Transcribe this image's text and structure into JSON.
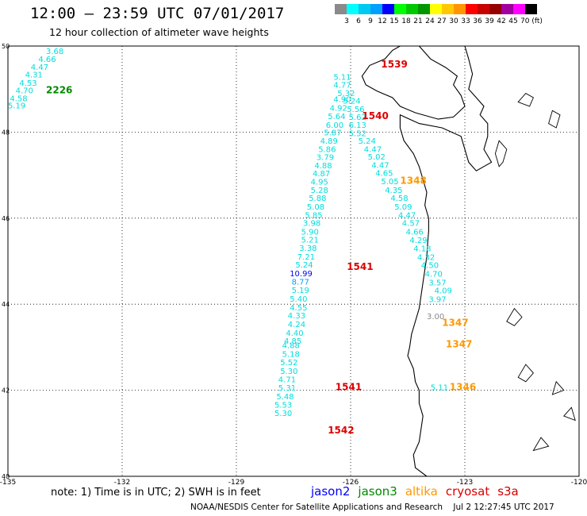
{
  "title": "12:00 — 23:59 UTC 07/01/2017",
  "subtitle": "12 hour collection of altimeter wave heights",
  "color_scale": {
    "labels": [
      "3",
      "6",
      "9",
      "12",
      "15",
      "18",
      "21",
      "24",
      "27",
      "30",
      "33",
      "36",
      "39",
      "42",
      "45",
      "70 (ft)"
    ],
    "colors": [
      "#8a8a8a",
      "#00ffff",
      "#00c8f0",
      "#00a0ff",
      "#0000ff",
      "#00ff00",
      "#00c800",
      "#009600",
      "#ffff00",
      "#ffc800",
      "#ff9600",
      "#ff0000",
      "#c80000",
      "#960000",
      "#a000a0",
      "#ff00ff",
      "#000000"
    ]
  },
  "axes": {
    "lon_ticks": [
      "-135",
      "-132",
      "-129",
      "-126",
      "-123",
      "-120"
    ],
    "lat_ticks": [
      "50",
      "48",
      "46",
      "44",
      "42",
      "40"
    ]
  },
  "satellites": [
    {
      "name": "jason2",
      "color": "#0000ff"
    },
    {
      "name": "jason3",
      "color": "#008800"
    },
    {
      "name": "altika",
      "color": "#ff9900"
    },
    {
      "name": "cryosat",
      "color": "#dd0000"
    },
    {
      "name": "s3a",
      "color": "#cc0000"
    }
  ],
  "pass_labels": [
    {
      "text": "2226",
      "color": "#008800",
      "lon": -134.0,
      "lat": 48.9
    },
    {
      "text": "1539",
      "color": "#dd0000",
      "lon": -125.2,
      "lat": 49.5
    },
    {
      "text": "1540",
      "color": "#dd0000",
      "lon": -125.7,
      "lat": 48.3
    },
    {
      "text": "1348",
      "color": "#ff9900",
      "lon": -124.7,
      "lat": 46.8
    },
    {
      "text": "1541",
      "color": "#dd0000",
      "lon": -126.1,
      "lat": 44.8
    },
    {
      "text": "1347",
      "color": "#ff9900",
      "lon": -123.6,
      "lat": 43.5
    },
    {
      "text": "1347",
      "color": "#ff9900",
      "lon": -123.5,
      "lat": 43.0
    },
    {
      "text": "1541",
      "color": "#dd0000",
      "lon": -126.4,
      "lat": 42.0
    },
    {
      "text": "1346",
      "color": "#ff9900",
      "lon": -123.4,
      "lat": 42.0
    },
    {
      "text": "1542",
      "color": "#dd0000",
      "lon": -126.6,
      "lat": 41.0
    }
  ],
  "readings": [
    {
      "text": "3.68",
      "lon": -134.0,
      "lat": 49.82,
      "color": "#00dddd"
    },
    {
      "text": "4.66",
      "lon": -134.2,
      "lat": 49.63,
      "color": "#00dddd"
    },
    {
      "text": "4.47",
      "lon": -134.4,
      "lat": 49.45,
      "color": "#00dddd"
    },
    {
      "text": "4.31",
      "lon": -134.55,
      "lat": 49.27,
      "color": "#00dddd"
    },
    {
      "text": "4.53",
      "lon": -134.7,
      "lat": 49.08,
      "color": "#00dddd"
    },
    {
      "text": "4.70",
      "lon": -134.8,
      "lat": 48.9,
      "color": "#00dddd"
    },
    {
      "text": "4.58",
      "lon": -134.95,
      "lat": 48.72,
      "color": "#00dddd"
    },
    {
      "text": "5.19",
      "lon": -135.0,
      "lat": 48.55,
      "color": "#00dddd"
    },
    {
      "text": "5.11",
      "lon": -126.45,
      "lat": 49.22,
      "color": "#00dddd"
    },
    {
      "text": "4.77",
      "lon": -126.45,
      "lat": 49.03,
      "color": "#00dddd"
    },
    {
      "text": "5.32",
      "lon": -126.35,
      "lat": 48.84,
      "color": "#00dddd"
    },
    {
      "text": "5.24",
      "lon": -126.2,
      "lat": 48.66,
      "color": "#00dddd"
    },
    {
      "text": "5.56",
      "lon": -126.1,
      "lat": 48.47,
      "color": "#00dddd"
    },
    {
      "text": "5.62",
      "lon": -126.05,
      "lat": 48.28,
      "color": "#00dddd"
    },
    {
      "text": "6.13",
      "lon": -126.05,
      "lat": 48.1,
      "color": "#00dddd"
    },
    {
      "text": "5.52",
      "lon": -126.05,
      "lat": 47.91,
      "color": "#00dddd"
    },
    {
      "text": "5.24",
      "lon": -125.8,
      "lat": 47.73,
      "color": "#00dddd"
    },
    {
      "text": "4.47",
      "lon": -125.65,
      "lat": 47.54,
      "color": "#00dddd"
    },
    {
      "text": "5.02",
      "lon": -125.55,
      "lat": 47.36,
      "color": "#00dddd"
    },
    {
      "text": "4.47",
      "lon": -125.45,
      "lat": 47.17,
      "color": "#00dddd"
    },
    {
      "text": "4.65",
      "lon": -125.35,
      "lat": 46.98,
      "color": "#00dddd"
    },
    {
      "text": "5.05",
      "lon": -125.2,
      "lat": 46.79,
      "color": "#00dddd"
    },
    {
      "text": "4.35",
      "lon": -125.1,
      "lat": 46.59,
      "color": "#00dddd"
    },
    {
      "text": "4.58",
      "lon": -124.95,
      "lat": 46.4,
      "color": "#00dddd"
    },
    {
      "text": "5.09",
      "lon": -124.85,
      "lat": 46.2,
      "color": "#00dddd"
    },
    {
      "text": "4.47",
      "lon": -124.75,
      "lat": 46.01,
      "color": "#00dddd"
    },
    {
      "text": "4.57",
      "lon": -124.65,
      "lat": 45.82,
      "color": "#00dddd"
    },
    {
      "text": "4.66",
      "lon": -124.55,
      "lat": 45.62,
      "color": "#00dddd"
    },
    {
      "text": "4.29",
      "lon": -124.45,
      "lat": 45.42,
      "color": "#00dddd"
    },
    {
      "text": "4.18",
      "lon": -124.35,
      "lat": 45.23,
      "color": "#00dddd"
    },
    {
      "text": "4.32",
      "lon": -124.25,
      "lat": 45.03,
      "color": "#00dddd"
    },
    {
      "text": "4.50",
      "lon": -124.15,
      "lat": 44.84,
      "color": "#00dddd"
    },
    {
      "text": "4.70",
      "lon": -124.05,
      "lat": 44.64,
      "color": "#00dddd"
    },
    {
      "text": "3.57",
      "lon": -123.95,
      "lat": 44.44,
      "color": "#00dddd"
    },
    {
      "text": "4.09",
      "lon": -123.8,
      "lat": 44.25,
      "color": "#00dddd"
    },
    {
      "text": "3.97",
      "lon": -123.95,
      "lat": 44.05,
      "color": "#00dddd"
    },
    {
      "text": "3.00",
      "lon": -124.0,
      "lat": 43.65,
      "color": "#888888"
    },
    {
      "text": "5.11",
      "lon": -123.9,
      "lat": 42.0,
      "color": "#00dddd"
    },
    {
      "text": "4.90",
      "lon": -126.45,
      "lat": 48.7,
      "color": "#00dddd"
    },
    {
      "text": "4.92",
      "lon": -126.55,
      "lat": 48.5,
      "color": "#00dddd"
    },
    {
      "text": "5.64",
      "lon": -126.6,
      "lat": 48.3,
      "color": "#00dddd"
    },
    {
      "text": "6.00",
      "lon": -126.65,
      "lat": 48.1,
      "color": "#00dddd"
    },
    {
      "text": "5.87",
      "lon": -126.7,
      "lat": 47.92,
      "color": "#00dddd"
    },
    {
      "text": "4.89",
      "lon": -126.8,
      "lat": 47.73,
      "color": "#00dddd"
    },
    {
      "text": "5.86",
      "lon": -126.85,
      "lat": 47.54,
      "color": "#00dddd"
    },
    {
      "text": "3.79",
      "lon": -126.9,
      "lat": 47.35,
      "color": "#00dddd"
    },
    {
      "text": "4.88",
      "lon": -126.95,
      "lat": 47.16,
      "color": "#00dddd"
    },
    {
      "text": "4.87",
      "lon": -127.0,
      "lat": 46.97,
      "color": "#00dddd"
    },
    {
      "text": "4.95",
      "lon": -127.05,
      "lat": 46.78,
      "color": "#00dddd"
    },
    {
      "text": "5.28",
      "lon": -127.05,
      "lat": 46.59,
      "color": "#00dddd"
    },
    {
      "text": "5.88",
      "lon": -127.1,
      "lat": 46.4,
      "color": "#00dddd"
    },
    {
      "text": "5.08",
      "lon": -127.15,
      "lat": 46.2,
      "color": "#00dddd"
    },
    {
      "text": "5.85",
      "lon": -127.2,
      "lat": 46.01,
      "color": "#00dddd"
    },
    {
      "text": "3.98",
      "lon": -127.25,
      "lat": 45.82,
      "color": "#00dddd"
    },
    {
      "text": "5.90",
      "lon": -127.3,
      "lat": 45.62,
      "color": "#00dddd"
    },
    {
      "text": "5.21",
      "lon": -127.3,
      "lat": 45.43,
      "color": "#00dddd"
    },
    {
      "text": "3.38",
      "lon": -127.35,
      "lat": 45.24,
      "color": "#00dddd"
    },
    {
      "text": "7.21",
      "lon": -127.4,
      "lat": 45.04,
      "color": "#00dddd"
    },
    {
      "text": "5.24",
      "lon": -127.45,
      "lat": 44.85,
      "color": "#00dddd"
    },
    {
      "text": "10.99",
      "lon": -127.6,
      "lat": 44.65,
      "color": "#0000ff"
    },
    {
      "text": "8.77",
      "lon": -127.55,
      "lat": 44.46,
      "color": "#00a0ff"
    },
    {
      "text": "5.19",
      "lon": -127.55,
      "lat": 44.26,
      "color": "#00dddd"
    },
    {
      "text": "5.40",
      "lon": -127.6,
      "lat": 44.06,
      "color": "#00dddd"
    },
    {
      "text": "4.55",
      "lon": -127.6,
      "lat": 43.86,
      "color": "#00dddd"
    },
    {
      "text": "4.33",
      "lon": -127.65,
      "lat": 43.67,
      "color": "#00dddd"
    },
    {
      "text": "4.24",
      "lon": -127.65,
      "lat": 43.47,
      "color": "#00dddd"
    },
    {
      "text": "4.40",
      "lon": -127.7,
      "lat": 43.27,
      "color": "#00dddd"
    },
    {
      "text": "4.85",
      "lon": -127.75,
      "lat": 43.08,
      "color": "#00dddd"
    },
    {
      "text": "4.88",
      "lon": -127.8,
      "lat": 42.98,
      "color": "#00dddd"
    },
    {
      "text": "5.18",
      "lon": -127.8,
      "lat": 42.78,
      "color": "#00dddd"
    },
    {
      "text": "5.52",
      "lon": -127.85,
      "lat": 42.58,
      "color": "#00dddd"
    },
    {
      "text": "5.30",
      "lon": -127.85,
      "lat": 42.38,
      "color": "#00dddd"
    },
    {
      "text": "4.71",
      "lon": -127.9,
      "lat": 42.19,
      "color": "#00dddd"
    },
    {
      "text": "5.31",
      "lon": -127.9,
      "lat": 41.99,
      "color": "#00dddd"
    },
    {
      "text": "5.48",
      "lon": -127.95,
      "lat": 41.79,
      "color": "#00dddd"
    },
    {
      "text": "5.53",
      "lon": -128.0,
      "lat": 41.6,
      "color": "#00dddd"
    },
    {
      "text": "5.30",
      "lon": -128.0,
      "lat": 41.4,
      "color": "#00dddd"
    }
  ],
  "note": "note:  1) Time is in UTC;  2) SWH is in feet",
  "footer": {
    "org": "NOAA/NESDIS Center for Satellite Applications and Research",
    "timestamp": "Jul  2 12:27:45 UTC 2017"
  }
}
